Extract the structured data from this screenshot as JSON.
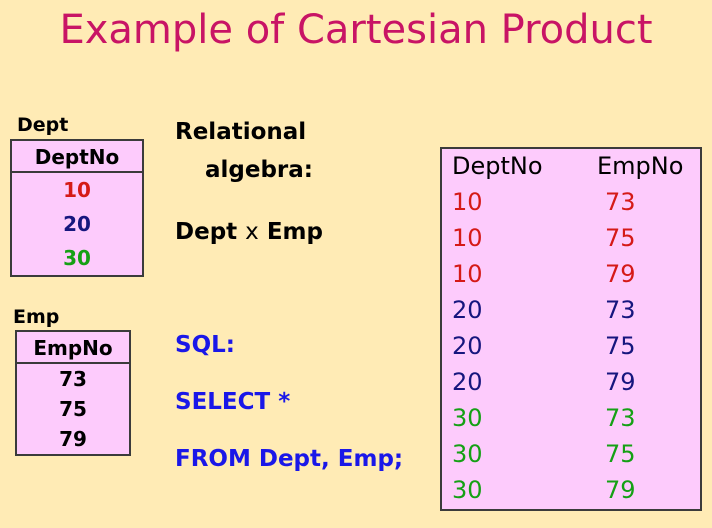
{
  "title": "Example of Cartesian Product",
  "colors": {
    "background": "#FFEBB5",
    "table_bg": "#FDCBFC",
    "border": "#3B3B3B",
    "title": "#C81465",
    "red": "#D51A17",
    "navy": "#16167E",
    "green": "#15A015",
    "blue": "#1A17E8",
    "black": "#000000"
  },
  "algebra": {
    "line1": "Relational",
    "line2": "algebra:",
    "expr_left": "Dept",
    "expr_op": "x",
    "expr_right": "Emp"
  },
  "sql": {
    "label": "SQL:",
    "select": "SELECT *",
    "from": "FROM Dept, Emp;"
  },
  "dept_table": {
    "label": "Dept",
    "header": "DeptNo",
    "rows": [
      {
        "value": "10",
        "color": "red"
      },
      {
        "value": "20",
        "color": "navy"
      },
      {
        "value": "30",
        "color": "green"
      }
    ]
  },
  "emp_table": {
    "label": "Emp",
    "header": "EmpNo",
    "rows": [
      {
        "value": "73",
        "color": "black"
      },
      {
        "value": "75",
        "color": "black"
      },
      {
        "value": "79",
        "color": "black"
      }
    ]
  },
  "result_table": {
    "headers": [
      "DeptNo",
      "EmpNo"
    ],
    "rows": [
      {
        "dept": "10",
        "emp": "73",
        "color": "red"
      },
      {
        "dept": "10",
        "emp": "75",
        "color": "red"
      },
      {
        "dept": "10",
        "emp": "79",
        "color": "red"
      },
      {
        "dept": "20",
        "emp": "73",
        "color": "navy"
      },
      {
        "dept": "20",
        "emp": "75",
        "color": "navy"
      },
      {
        "dept": "20",
        "emp": "79",
        "color": "navy"
      },
      {
        "dept": "30",
        "emp": "73",
        "color": "green"
      },
      {
        "dept": "30",
        "emp": "75",
        "color": "green"
      },
      {
        "dept": "30",
        "emp": "79",
        "color": "green"
      }
    ]
  }
}
